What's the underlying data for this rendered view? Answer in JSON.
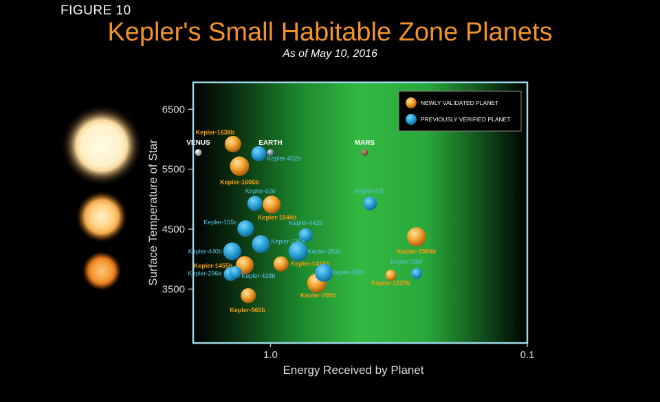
{
  "figure_label": "FIGURE 10",
  "title": "Kepler's Small Habitable Zone Planets",
  "subtitle": "As of May 10, 2016",
  "chart_data": {
    "type": "scatter",
    "xlabel": "Energy Received by Planet",
    "ylabel": "Surface Temperature of Star",
    "x_scale": "log-reversed",
    "xlim": [
      2.0,
      0.1
    ],
    "ylim": [
      2600,
      6950
    ],
    "x_ticks": [
      {
        "value": 1.0,
        "label": "1.0"
      },
      {
        "value": 0.1,
        "label": "0.1"
      }
    ],
    "y_ticks": [
      {
        "value": 6500,
        "label": "6500"
      },
      {
        "value": 5500,
        "label": "5500"
      },
      {
        "value": 4500,
        "label": "4500"
      },
      {
        "value": 3500,
        "label": "3500"
      }
    ],
    "legend": {
      "placement": "top-right",
      "entries": [
        {
          "label": "NEWLY VALIDATED PLANET",
          "color": "#f39c12"
        },
        {
          "label": "PREVIOUSLY VERIFIED PLANET",
          "color": "#29a8e0"
        }
      ]
    },
    "colors": {
      "newly": "#f39c12",
      "previous": "#29a8e0",
      "habitable_zone": "#2ecc40",
      "frame": "#9fd9e8"
    },
    "series": [
      {
        "name": "NEWLY VALIDATED PLANET",
        "points": [
          {
            "label": "Kepler-1638b",
            "energy": 1.4,
            "temp": 5920
          },
          {
            "label": "Kepler-1606b",
            "energy": 1.32,
            "temp": 5550
          },
          {
            "label": "Kepler-1544b",
            "energy": 0.99,
            "temp": 4910
          },
          {
            "label": "Kepler-1455b",
            "energy": 1.26,
            "temp": 3900
          },
          {
            "label": "Kepler-1410b",
            "energy": 0.91,
            "temp": 3920
          },
          {
            "label": "Kepler-705b",
            "energy": 0.66,
            "temp": 3600
          },
          {
            "label": "Kepler-560b",
            "energy": 1.22,
            "temp": 3390
          },
          {
            "label": "Kepler-1593b",
            "energy": 0.27,
            "temp": 4370
          },
          {
            "label": "Kepler-1229b",
            "energy": 0.34,
            "temp": 3730
          }
        ]
      },
      {
        "name": "PREVIOUSLY VERIFIED PLANET",
        "points": [
          {
            "label": "Kepler-452b",
            "energy": 1.11,
            "temp": 5760
          },
          {
            "label": "Kepler-62e",
            "energy": 1.15,
            "temp": 4930
          },
          {
            "label": "Kepler-62f",
            "energy": 0.41,
            "temp": 4930
          },
          {
            "label": "Kepler-155c",
            "energy": 1.25,
            "temp": 4510
          },
          {
            "label": "Kepler-442b",
            "energy": 0.73,
            "temp": 4400
          },
          {
            "label": "Kepler-235e",
            "energy": 1.09,
            "temp": 4250
          },
          {
            "label": "Kepler-440b",
            "energy": 1.41,
            "temp": 4130
          },
          {
            "label": "Kepler-283c",
            "energy": 0.78,
            "temp": 4130
          },
          {
            "label": "Kepler-296e",
            "energy": 1.43,
            "temp": 3750
          },
          {
            "label": "Kepler-438b",
            "energy": 1.37,
            "temp": 3780
          },
          {
            "label": "Kepler-296f",
            "energy": 0.62,
            "temp": 3770
          },
          {
            "label": "Kepler-186f",
            "energy": 0.27,
            "temp": 3760
          }
        ]
      }
    ],
    "solar_system": [
      {
        "label": "VENUS",
        "energy": 1.91,
        "temp": 5780
      },
      {
        "label": "EARTH",
        "energy": 1.0,
        "temp": 5780
      },
      {
        "label": "MARS",
        "energy": 0.43,
        "temp": 5780
      }
    ]
  }
}
